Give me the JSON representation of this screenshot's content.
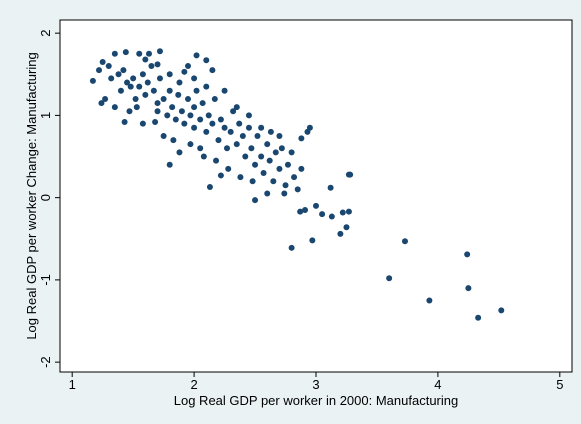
{
  "chart_data": {
    "type": "scatter",
    "x_label": "Log Real GDP per worker in 2000: Manufacturing",
    "y_label": "Log Real GDP per worker Change: Manufacturing",
    "color": "#1a476f",
    "xlim": [
      0.9,
      5.1
    ],
    "xticks": [
      1,
      2,
      3,
      4,
      5
    ],
    "ylim": [
      -2.12,
      2.16
    ],
    "yticks": [
      -2,
      -1,
      0,
      1,
      2
    ],
    "x": [
      3.6,
      3.73,
      3.93,
      4.24,
      4.25,
      4.33,
      4.52,
      2.8,
      2.97,
      3.2,
      3.25,
      3.13,
      3.22,
      3.27,
      3.12,
      3.28,
      3.27,
      2.95,
      2.93,
      2.88,
      1.17,
      1.22,
      1.25,
      1.24,
      1.35,
      1.44,
      1.63,
      1.72,
      1.55,
      2.02,
      2.1,
      1.92,
      1.8,
      1.53,
      1.7,
      1.8,
      1.88,
      2.08,
      2.13,
      2.22,
      2.5,
      2.6,
      2.74,
      2.87,
      2.91,
      3.0,
      3.05,
      1.3,
      1.32,
      1.38,
      1.4,
      1.42,
      1.45,
      1.48,
      1.5,
      1.52,
      1.55,
      1.58,
      1.6,
      1.62,
      1.65,
      1.67,
      1.7,
      1.72,
      1.75,
      1.78,
      1.8,
      1.82,
      1.85,
      1.87,
      1.9,
      1.92,
      1.95,
      1.97,
      2.0,
      2.0,
      2.02,
      2.05,
      2.07,
      2.1,
      2.12,
      2.15,
      2.17,
      2.2,
      2.22,
      2.25,
      2.27,
      2.3,
      2.32,
      2.35,
      2.37,
      2.4,
      2.42,
      2.45,
      2.47,
      2.5,
      2.52,
      2.55,
      2.57,
      2.6,
      2.62,
      2.65,
      2.67,
      2.7,
      2.72,
      2.75,
      2.77,
      2.8,
      2.82,
      2.85,
      2.88,
      1.43,
      1.58,
      1.47,
      1.35,
      1.27,
      1.68,
      1.75,
      1.83,
      1.97,
      2.05,
      2.18,
      2.28,
      2.38,
      2.48,
      1.88,
      2.0,
      2.1,
      2.25,
      2.35,
      2.45,
      2.55,
      2.63,
      2.7,
      1.95,
      2.15,
      1.6,
      1.7
    ],
    "values": [
      -0.98,
      -0.53,
      -1.25,
      -0.69,
      -1.1,
      -1.46,
      -1.37,
      -0.61,
      -0.52,
      -0.44,
      -0.36,
      -0.23,
      -0.18,
      -0.17,
      0.12,
      0.28,
      0.28,
      0.85,
      0.8,
      0.72,
      1.42,
      1.55,
      1.65,
      1.15,
      1.75,
      1.77,
      1.75,
      1.78,
      1.75,
      1.73,
      1.67,
      1.53,
      1.5,
      1.1,
      1.05,
      0.4,
      0.55,
      0.5,
      0.13,
      0.27,
      -0.03,
      0.05,
      0.05,
      -0.17,
      -0.15,
      -0.1,
      -0.2,
      1.6,
      1.45,
      1.5,
      1.3,
      1.55,
      1.4,
      1.35,
      1.45,
      1.2,
      1.35,
      1.5,
      1.25,
      1.4,
      1.6,
      1.3,
      1.15,
      1.45,
      1.2,
      1.0,
      1.3,
      1.1,
      0.95,
      1.25,
      1.05,
      0.9,
      1.2,
      1.0,
      1.1,
      0.85,
      1.3,
      0.95,
      1.15,
      0.8,
      1.0,
      0.9,
      1.2,
      0.7,
      0.95,
      0.85,
      0.6,
      0.8,
      1.05,
      0.65,
      0.9,
      0.75,
      0.5,
      0.85,
      0.6,
      0.4,
      0.75,
      0.5,
      0.3,
      0.65,
      0.45,
      0.2,
      0.55,
      0.35,
      0.6,
      0.15,
      0.4,
      0.55,
      0.25,
      0.1,
      0.35,
      0.92,
      0.9,
      1.05,
      1.1,
      1.2,
      0.92,
      0.75,
      0.7,
      0.65,
      0.6,
      0.45,
      0.35,
      0.25,
      0.2,
      1.4,
      1.45,
      1.35,
      1.3,
      1.1,
      1.0,
      0.85,
      0.8,
      0.75,
      1.6,
      1.55,
      1.68,
      1.62
    ]
  }
}
